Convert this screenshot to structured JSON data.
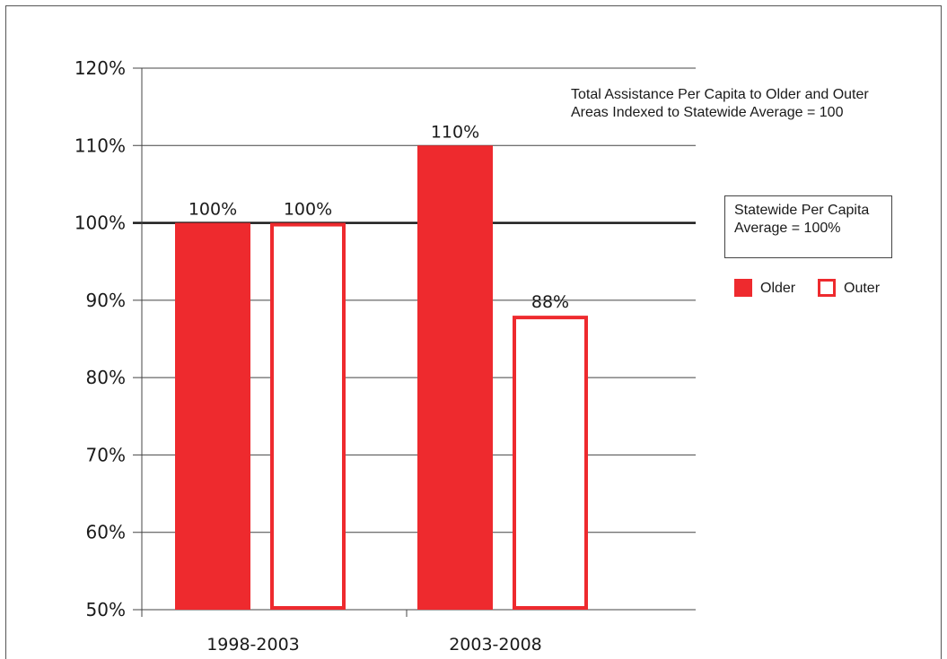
{
  "colors": {
    "older_fill": "#ee2a2e",
    "outer_stroke": "#ee2a2e",
    "reference_line": "#1a1a1a",
    "gridline": "#444444"
  },
  "chart_data": {
    "type": "bar",
    "title_lines": [
      "Total Assistance Per Capita to Older and Outer",
      "Areas Indexed to Statewide Average = 100"
    ],
    "categories": [
      "1998-2003",
      "2003-2008"
    ],
    "series": [
      {
        "name": "Older",
        "style": "filled",
        "values": [
          100,
          110
        ],
        "labels": [
          "100%",
          "110%"
        ]
      },
      {
        "name": "Outer",
        "style": "outline",
        "values": [
          100,
          88
        ],
        "labels": [
          "100%",
          "88%"
        ]
      }
    ],
    "ylim": [
      50,
      120
    ],
    "yticks": [
      50,
      60,
      70,
      80,
      90,
      100,
      110,
      120
    ],
    "ytick_labels": [
      "50%",
      "60%",
      "70%",
      "80%",
      "90%",
      "100%",
      "110%",
      "120%"
    ],
    "reference_line": {
      "value": 100
    },
    "reference_box_lines": [
      "Statewide Per Capita",
      "Average = 100%"
    ],
    "legend_position": "right",
    "grid": true,
    "xlabel": "",
    "ylabel": ""
  }
}
